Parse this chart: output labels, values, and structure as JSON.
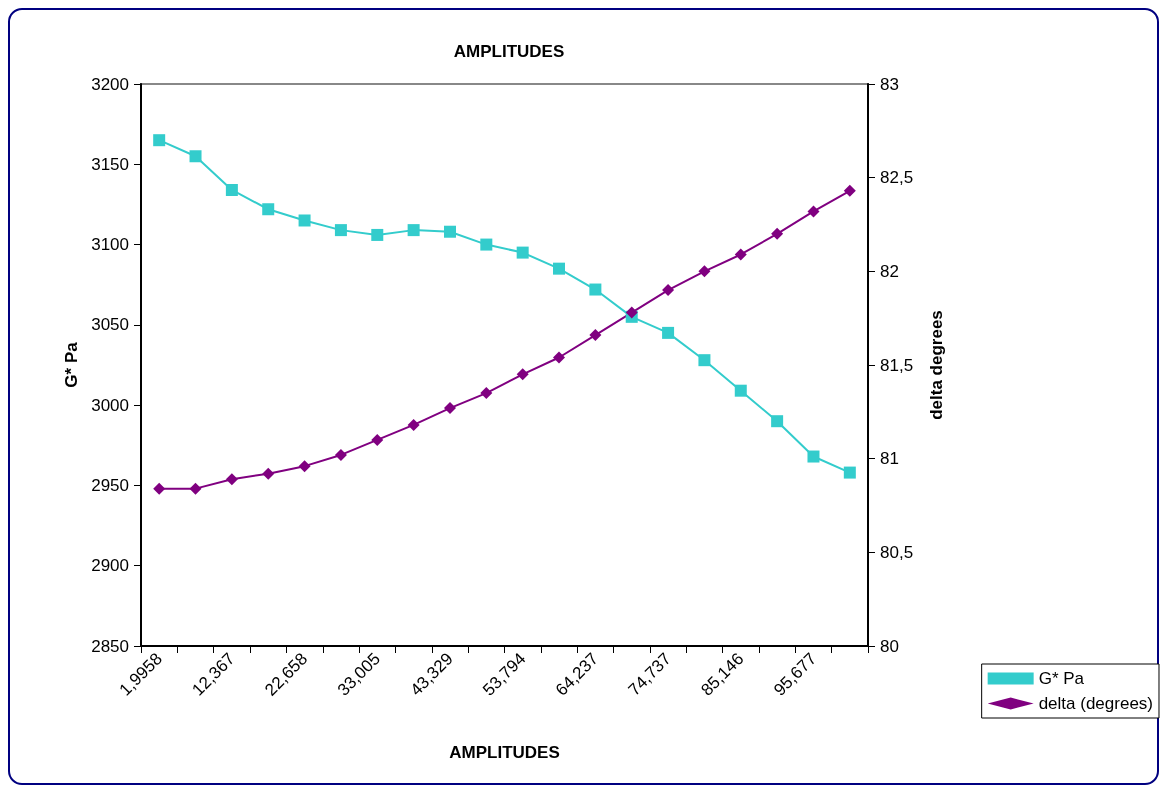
{
  "chart_data": {
    "type": "line",
    "title": "AMPLITUDES",
    "xlabel": "AMPLITUDES",
    "ylabel": "G* Pa",
    "y2label": "delta degrees",
    "categories": [
      "1,9958",
      null,
      "12,367",
      null,
      "22,658",
      null,
      "33,005",
      null,
      "43,329",
      null,
      "53,794",
      null,
      "64,237",
      null,
      "74,737",
      null,
      "85,146",
      null,
      "95,677",
      null
    ],
    "series": [
      {
        "name": "G* Pa",
        "color": "#33cccc",
        "marker": "square",
        "values": [
          3165,
          3155,
          3134,
          3122,
          3115,
          3109,
          3106,
          3109,
          3108,
          3100,
          3095,
          3085,
          3072,
          3055,
          3045,
          3028,
          3009,
          2990,
          2968,
          2958
        ]
      },
      {
        "name": "delta (degrees)",
        "color": "#800080",
        "marker": "diamond",
        "axis": "y2",
        "values": [
          80.84,
          80.84,
          80.89,
          80.92,
          80.96,
          81.02,
          81.1,
          81.18,
          81.27,
          81.35,
          81.45,
          81.54,
          81.66,
          81.78,
          81.9,
          82.0,
          82.09,
          82.2,
          82.32,
          82.43
        ]
      }
    ],
    "ylim": [
      2850,
      3200
    ],
    "yticks": [
      2850,
      2900,
      2950,
      3000,
      3050,
      3100,
      3150,
      3200
    ],
    "y2lim": [
      80,
      83
    ],
    "y2ticks": [
      {
        "value": 80,
        "label": "80"
      },
      {
        "value": 80.5,
        "label": "80,5"
      },
      {
        "value": 81,
        "label": "81"
      },
      {
        "value": 81.5,
        "label": "81,5"
      },
      {
        "value": 82,
        "label": "82"
      },
      {
        "value": 82.5,
        "label": "82,5"
      },
      {
        "value": 83,
        "label": "83"
      }
    ],
    "grid": false,
    "legend": "bottom right",
    "line_style": "solid"
  }
}
